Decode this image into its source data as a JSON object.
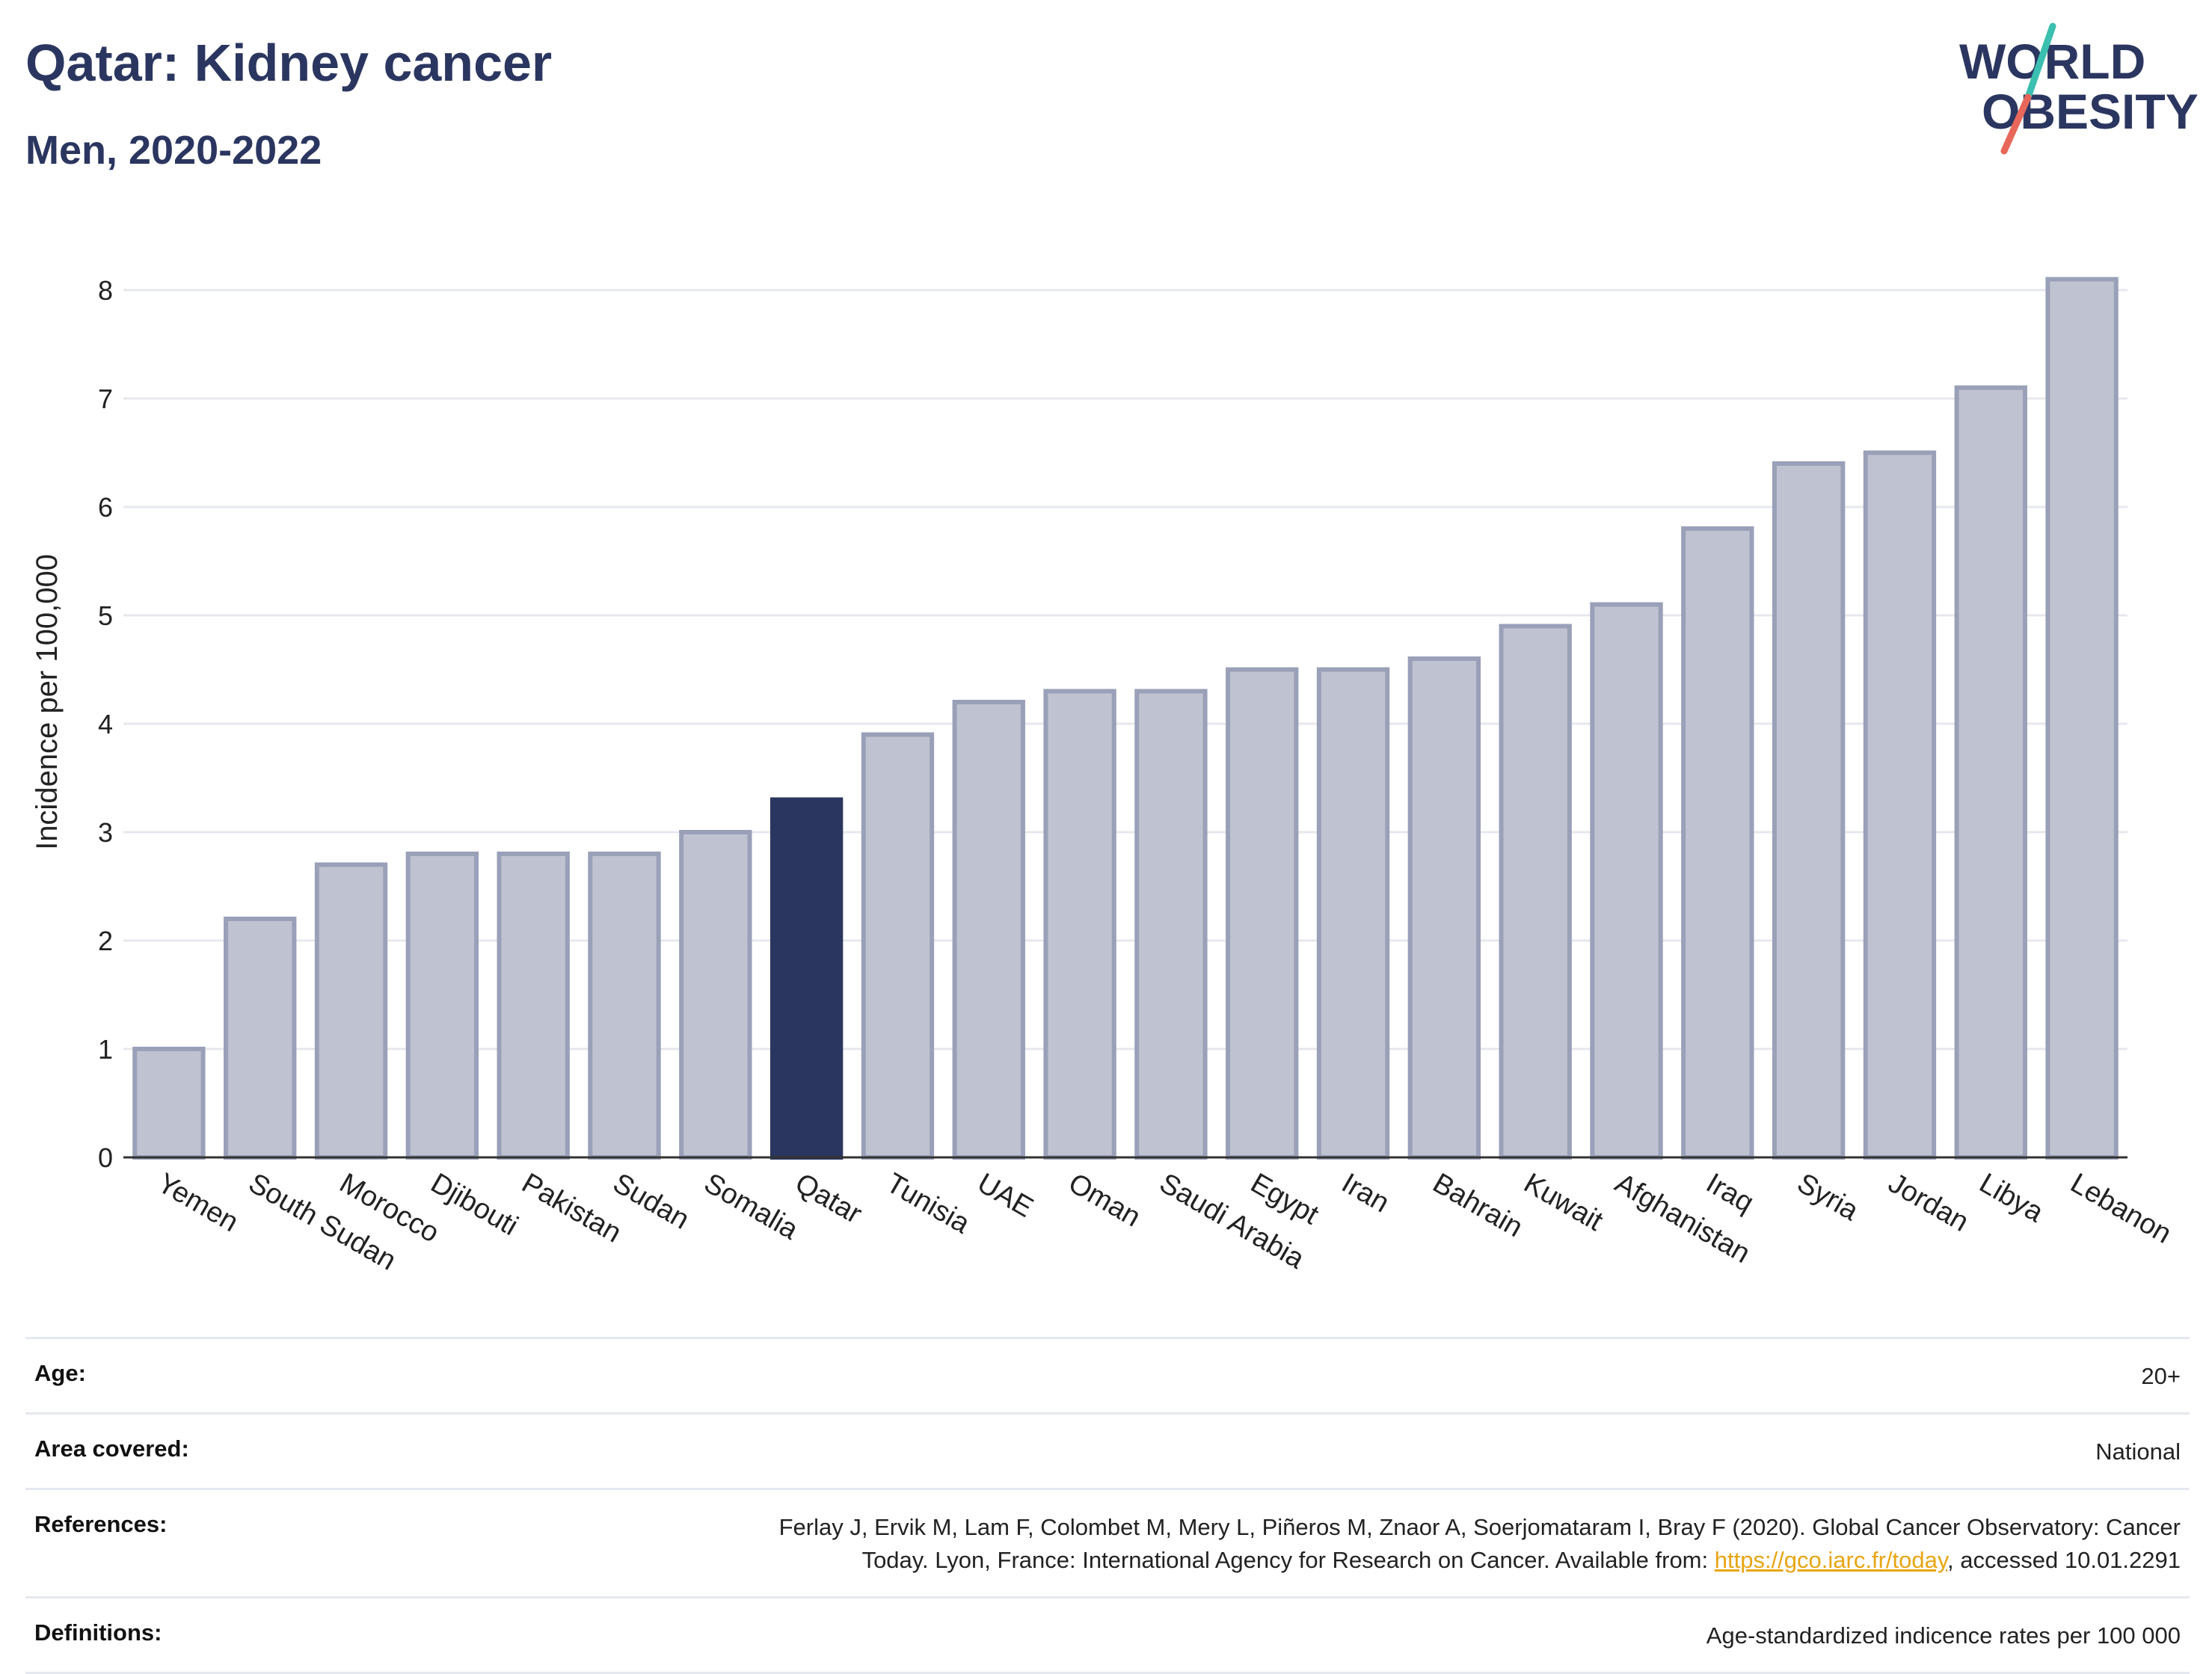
{
  "header": {
    "title": "Qatar: Kidney cancer",
    "subtitle": "Men, 2020-2022"
  },
  "logo": {
    "line1": "WORLD",
    "line2": "OBESITY",
    "colors": {
      "text": "#2b3660",
      "slash_top": "#3bbfb0",
      "slash_bottom": "#e8675a"
    }
  },
  "chart_data": {
    "type": "bar",
    "ylabel": "Incidence per 100,000",
    "ylim": [
      0,
      8.4
    ],
    "yticks": [
      0,
      1,
      2,
      3,
      4,
      5,
      6,
      7,
      8
    ],
    "grid": true,
    "highlight": "Qatar",
    "colors": {
      "bar": "#bfc2d0",
      "bar_edge": "#9aa0b8",
      "highlight": "#2b3660"
    },
    "categories": [
      "Yemen",
      "South Sudan",
      "Morocco",
      "Djibouti",
      "Pakistan",
      "Sudan",
      "Somalia",
      "Qatar",
      "Tunisia",
      "UAE",
      "Oman",
      "Saudi Arabia",
      "Egypt",
      "Iran",
      "Bahrain",
      "Kuwait",
      "Afghanistan",
      "Iraq",
      "Syria",
      "Jordan",
      "Libya",
      "Lebanon"
    ],
    "values": [
      1.0,
      2.2,
      2.7,
      2.8,
      2.8,
      2.8,
      3.0,
      3.3,
      3.9,
      4.2,
      4.3,
      4.3,
      4.5,
      4.5,
      4.6,
      4.9,
      5.1,
      5.8,
      6.4,
      6.5,
      7.1,
      8.1
    ]
  },
  "meta": {
    "age_label": "Age:",
    "age_value": "20+",
    "area_label": "Area covered:",
    "area_value": "National",
    "references_label": "References:",
    "references_line1": "Ferlay J, Ervik M, Lam F, Colombet M, Mery L, Piñeros M, Znaor A, Soerjomataram I, Bray F (2020). Global Cancer Observatory: Cancer",
    "references_line2_pre": "Today. Lyon, France: International Agency for Research on Cancer. Available from: ",
    "references_link": "https://gco.iarc.fr/today",
    "references_line2_post": ", accessed 10.01.2291",
    "definitions_label": "Definitions:",
    "definitions_value": "Age-standardized indicence rates per 100 000"
  }
}
